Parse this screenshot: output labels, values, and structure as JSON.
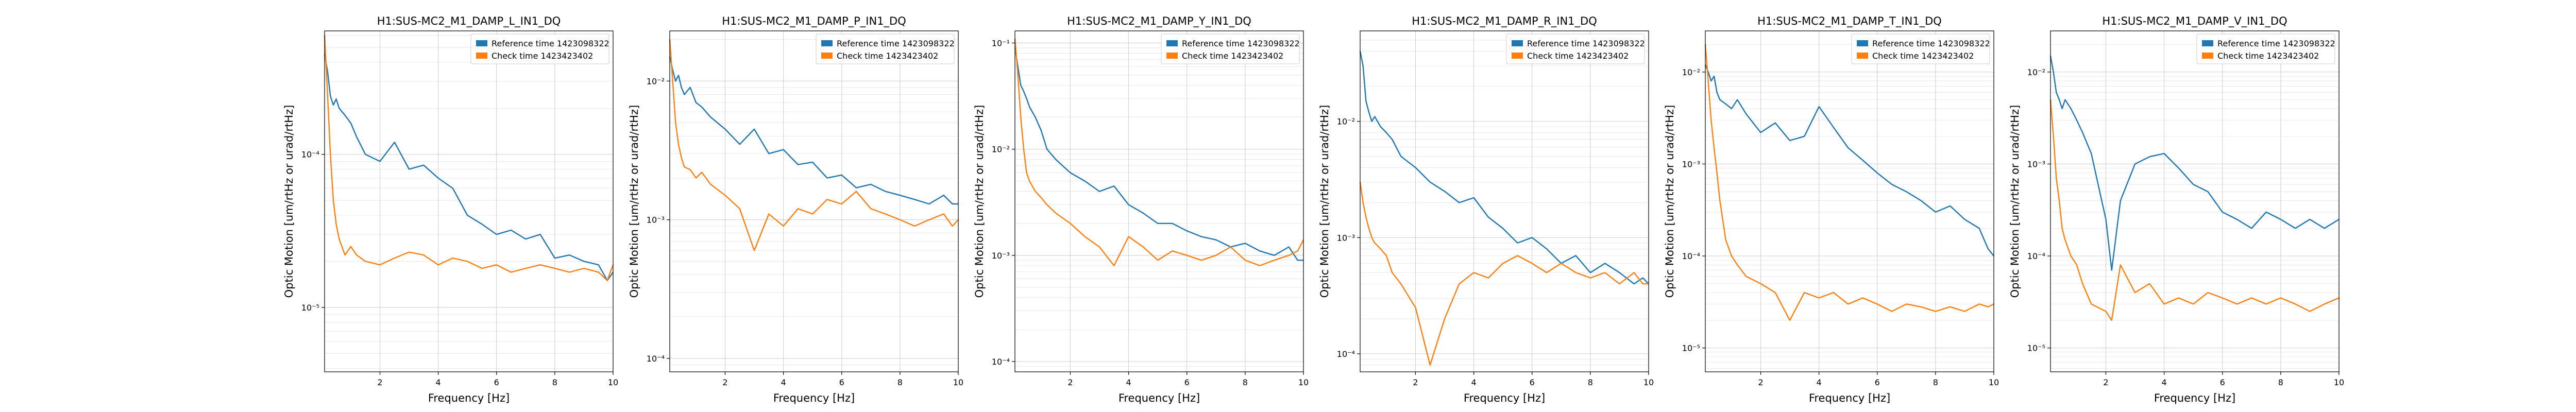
{
  "figure": {
    "background": "#ffffff"
  },
  "colors": {
    "reference": "#1f77b4",
    "check": "#ff7f0e"
  },
  "chart_data": [
    {
      "type": "line",
      "title": "H1:SUS-MC2_M1_DAMP_L_IN1_DQ",
      "xlabel": "Frequency [Hz]",
      "ylabel": "Optic Motion [um/rtHz or urad/rtHz]",
      "xscale": "linear",
      "yscale": "log",
      "xlim": [
        0.1,
        10
      ],
      "ylim": [
        3.8e-06,
        0.00064
      ],
      "xticks": [
        2,
        4,
        6,
        8,
        10
      ],
      "xtick_labels": [
        "2",
        "4",
        "6",
        "8",
        "10"
      ],
      "yticks": [
        1e-05,
        0.0001
      ],
      "ytick_labels": [
        "10⁻⁵",
        "10⁻⁴"
      ],
      "grid": true,
      "legend_position": "top-right",
      "series": [
        {
          "name": "Reference time 1423098322",
          "x": [
            0.1,
            0.2,
            0.3,
            0.4,
            0.5,
            0.6,
            0.8,
            1.0,
            1.2,
            1.5,
            2.0,
            2.5,
            3.0,
            3.5,
            4.0,
            4.5,
            5.0,
            5.5,
            6.0,
            6.5,
            7.0,
            7.5,
            8.0,
            8.5,
            9.0,
            9.5,
            9.8,
            10.0
          ],
          "y": [
            0.00045,
            0.00035,
            0.00024,
            0.00021,
            0.00023,
            0.0002,
            0.00018,
            0.00016,
            0.00013,
            0.0001,
            9e-05,
            0.00012,
            8e-05,
            8.5e-05,
            7e-05,
            6e-05,
            4e-05,
            3.5e-05,
            3e-05,
            3.2e-05,
            2.8e-05,
            3e-05,
            2.1e-05,
            2.2e-05,
            2e-05,
            1.9e-05,
            1.5e-05,
            1.7e-05
          ]
        },
        {
          "name": "Check time 1423423402",
          "x": [
            0.1,
            0.2,
            0.3,
            0.4,
            0.5,
            0.6,
            0.8,
            1.0,
            1.2,
            1.5,
            2.0,
            2.5,
            3.0,
            3.5,
            4.0,
            4.5,
            5.0,
            5.5,
            6.0,
            6.5,
            7.0,
            7.5,
            8.0,
            8.5,
            9.0,
            9.5,
            9.8,
            10.0
          ],
          "y": [
            0.0006,
            0.00025,
            0.0001,
            5e-05,
            3.5e-05,
            2.8e-05,
            2.2e-05,
            2.5e-05,
            2.2e-05,
            2e-05,
            1.9e-05,
            2.1e-05,
            2.3e-05,
            2.2e-05,
            1.9e-05,
            2.1e-05,
            2e-05,
            1.8e-05,
            1.9e-05,
            1.7e-05,
            1.8e-05,
            1.9e-05,
            1.8e-05,
            1.7e-05,
            1.8e-05,
            1.7e-05,
            1.5e-05,
            1.9e-05
          ]
        }
      ]
    },
    {
      "type": "line",
      "title": "H1:SUS-MC2_M1_DAMP_P_IN1_DQ",
      "xlabel": "Frequency [Hz]",
      "ylabel": "Optic Motion [um/rtHz or urad/rtHz]",
      "xscale": "linear",
      "yscale": "log",
      "xlim": [
        0.1,
        10
      ],
      "ylim": [
        8e-05,
        0.023
      ],
      "xticks": [
        2,
        4,
        6,
        8,
        10
      ],
      "xtick_labels": [
        "2",
        "4",
        "6",
        "8",
        "10"
      ],
      "yticks": [
        0.0001,
        0.001,
        0.01
      ],
      "ytick_labels": [
        "10⁻⁴",
        "10⁻³",
        "10⁻²"
      ],
      "grid": true,
      "legend_position": "top-right",
      "series": [
        {
          "name": "Reference time 1423098322",
          "x": [
            0.1,
            0.2,
            0.3,
            0.4,
            0.5,
            0.6,
            0.8,
            1.0,
            1.2,
            1.5,
            2.0,
            2.5,
            3.0,
            3.5,
            4.0,
            4.5,
            5.0,
            5.5,
            6.0,
            6.5,
            7.0,
            7.5,
            8.0,
            8.5,
            9.0,
            9.5,
            9.8,
            10.0
          ],
          "y": [
            0.015,
            0.012,
            0.01,
            0.011,
            0.009,
            0.008,
            0.009,
            0.007,
            0.0065,
            0.0055,
            0.0045,
            0.0035,
            0.0045,
            0.003,
            0.0032,
            0.0025,
            0.0026,
            0.002,
            0.0021,
            0.0017,
            0.0018,
            0.0016,
            0.0015,
            0.0014,
            0.0013,
            0.0015,
            0.0013,
            0.0013
          ]
        },
        {
          "name": "Check time 1423423402",
          "x": [
            0.1,
            0.2,
            0.3,
            0.4,
            0.5,
            0.6,
            0.8,
            1.0,
            1.2,
            1.5,
            2.0,
            2.5,
            3.0,
            3.5,
            4.0,
            4.5,
            5.0,
            5.5,
            6.0,
            6.5,
            7.0,
            7.5,
            8.0,
            8.5,
            9.0,
            9.5,
            9.8,
            10.0
          ],
          "y": [
            0.02,
            0.01,
            0.005,
            0.0035,
            0.0028,
            0.0024,
            0.0023,
            0.002,
            0.0022,
            0.0018,
            0.0015,
            0.0012,
            0.0006,
            0.0011,
            0.0009,
            0.0012,
            0.0011,
            0.0014,
            0.0013,
            0.0016,
            0.0012,
            0.0011,
            0.001,
            0.0009,
            0.001,
            0.0011,
            0.0009,
            0.001
          ]
        }
      ]
    },
    {
      "type": "line",
      "title": "H1:SUS-MC2_M1_DAMP_Y_IN1_DQ",
      "xlabel": "Frequency [Hz]",
      "ylabel": "Optic Motion [um/rtHz or urad/rtHz]",
      "xscale": "linear",
      "yscale": "log",
      "xlim": [
        0.1,
        10
      ],
      "ylim": [
        8e-05,
        0.13
      ],
      "xticks": [
        2,
        4,
        6,
        8,
        10
      ],
      "xtick_labels": [
        "2",
        "4",
        "6",
        "8",
        "10"
      ],
      "yticks": [
        0.0001,
        0.001,
        0.01,
        0.1
      ],
      "ytick_labels": [
        "10⁻⁴",
        "10⁻³",
        "10⁻²",
        "10⁻¹"
      ],
      "grid": true,
      "legend_position": "top-right",
      "series": [
        {
          "name": "Reference time 1423098322",
          "x": [
            0.1,
            0.2,
            0.3,
            0.4,
            0.5,
            0.6,
            0.8,
            1.0,
            1.2,
            1.5,
            2.0,
            2.5,
            3.0,
            3.5,
            4.0,
            4.5,
            5.0,
            5.5,
            6.0,
            6.5,
            7.0,
            7.5,
            8.0,
            8.5,
            9.0,
            9.5,
            9.8,
            10.0
          ],
          "y": [
            0.09,
            0.06,
            0.04,
            0.035,
            0.03,
            0.025,
            0.02,
            0.015,
            0.01,
            0.008,
            0.006,
            0.005,
            0.004,
            0.0045,
            0.003,
            0.0025,
            0.002,
            0.002,
            0.0017,
            0.0015,
            0.0014,
            0.0012,
            0.0013,
            0.0011,
            0.001,
            0.0012,
            0.0009,
            0.0009
          ]
        },
        {
          "name": "Check time 1423423402",
          "x": [
            0.1,
            0.2,
            0.3,
            0.4,
            0.5,
            0.6,
            0.8,
            1.0,
            1.2,
            1.5,
            2.0,
            2.5,
            3.0,
            3.5,
            4.0,
            4.5,
            5.0,
            5.5,
            6.0,
            6.5,
            7.0,
            7.5,
            8.0,
            8.5,
            9.0,
            9.5,
            9.8,
            10.0
          ],
          "y": [
            0.11,
            0.05,
            0.02,
            0.01,
            0.006,
            0.005,
            0.004,
            0.0035,
            0.003,
            0.0025,
            0.002,
            0.0015,
            0.0012,
            0.0008,
            0.0015,
            0.0012,
            0.0009,
            0.0011,
            0.001,
            0.0009,
            0.001,
            0.0012,
            0.0009,
            0.0008,
            0.0009,
            0.001,
            0.0011,
            0.0014
          ]
        }
      ]
    },
    {
      "type": "line",
      "title": "H1:SUS-MC2_M1_DAMP_R_IN1_DQ",
      "xlabel": "Frequency [Hz]",
      "ylabel": "Optic Motion [um/rtHz or urad/rtHz]",
      "xscale": "linear",
      "yscale": "log",
      "xlim": [
        0.1,
        10
      ],
      "ylim": [
        7e-05,
        0.06
      ],
      "xticks": [
        2,
        4,
        6,
        8,
        10
      ],
      "xtick_labels": [
        "2",
        "4",
        "6",
        "8",
        "10"
      ],
      "yticks": [
        0.0001,
        0.001,
        0.01
      ],
      "ytick_labels": [
        "10⁻⁴",
        "10⁻³",
        "10⁻²"
      ],
      "grid": true,
      "legend_position": "top-right",
      "series": [
        {
          "name": "Reference time 1423098322",
          "x": [
            0.1,
            0.2,
            0.3,
            0.4,
            0.5,
            0.6,
            0.8,
            1.0,
            1.2,
            1.5,
            2.0,
            2.5,
            3.0,
            3.5,
            4.0,
            4.5,
            5.0,
            5.5,
            6.0,
            6.5,
            7.0,
            7.5,
            8.0,
            8.5,
            9.0,
            9.5,
            9.8,
            10.0
          ],
          "y": [
            0.04,
            0.03,
            0.015,
            0.012,
            0.01,
            0.011,
            0.009,
            0.008,
            0.007,
            0.005,
            0.004,
            0.003,
            0.0025,
            0.002,
            0.0022,
            0.0015,
            0.0012,
            0.0009,
            0.001,
            0.0008,
            0.0006,
            0.0007,
            0.0005,
            0.0006,
            0.0005,
            0.0004,
            0.00045,
            0.0004
          ]
        },
        {
          "name": "Check time 1423423402",
          "x": [
            0.1,
            0.2,
            0.3,
            0.4,
            0.5,
            0.6,
            0.8,
            1.0,
            1.2,
            1.5,
            2.0,
            2.5,
            3.0,
            3.5,
            4.0,
            4.5,
            5.0,
            5.5,
            6.0,
            6.5,
            7.0,
            7.5,
            8.0,
            8.5,
            9.0,
            9.5,
            9.8,
            10.0
          ],
          "y": [
            0.003,
            0.002,
            0.0015,
            0.0012,
            0.001,
            0.0009,
            0.0008,
            0.0007,
            0.0005,
            0.0004,
            0.00025,
            8e-05,
            0.0002,
            0.0004,
            0.0005,
            0.00045,
            0.0006,
            0.0007,
            0.0006,
            0.0005,
            0.0006,
            0.0005,
            0.00045,
            0.0005,
            0.0004,
            0.0005,
            0.0004,
            0.0004
          ]
        }
      ]
    },
    {
      "type": "line",
      "title": "H1:SUS-MC2_M1_DAMP_T_IN1_DQ",
      "xlabel": "Frequency [Hz]",
      "ylabel": "Optic Motion [um/rtHz or urad/rtHz]",
      "xscale": "linear",
      "yscale": "log",
      "xlim": [
        0.1,
        10
      ],
      "ylim": [
        5.5e-06,
        0.028
      ],
      "xticks": [
        2,
        4,
        6,
        8,
        10
      ],
      "xtick_labels": [
        "2",
        "4",
        "6",
        "8",
        "10"
      ],
      "yticks": [
        1e-05,
        0.0001,
        0.001,
        0.01
      ],
      "ytick_labels": [
        "10⁻⁵",
        "10⁻⁴",
        "10⁻³",
        "10⁻²"
      ],
      "grid": true,
      "legend_position": "top-right",
      "series": [
        {
          "name": "Reference time 1423098322",
          "x": [
            0.1,
            0.2,
            0.3,
            0.4,
            0.5,
            0.6,
            0.8,
            1.0,
            1.2,
            1.5,
            2.0,
            2.5,
            3.0,
            3.5,
            4.0,
            4.5,
            5.0,
            5.5,
            6.0,
            6.5,
            7.0,
            7.5,
            8.0,
            8.5,
            9.0,
            9.5,
            9.8,
            10.0
          ],
          "y": [
            0.012,
            0.01,
            0.008,
            0.009,
            0.006,
            0.005,
            0.0045,
            0.004,
            0.005,
            0.0035,
            0.0022,
            0.0028,
            0.0018,
            0.002,
            0.0042,
            0.0025,
            0.0015,
            0.0011,
            0.0008,
            0.0006,
            0.0005,
            0.0004,
            0.0003,
            0.00035,
            0.00025,
            0.0002,
            0.00012,
            0.0001
          ]
        },
        {
          "name": "Check time 1423423402",
          "x": [
            0.1,
            0.2,
            0.3,
            0.4,
            0.5,
            0.6,
            0.8,
            1.0,
            1.2,
            1.5,
            2.0,
            2.5,
            3.0,
            3.5,
            4.0,
            4.5,
            5.0,
            5.5,
            6.0,
            6.5,
            7.0,
            7.5,
            8.0,
            8.5,
            9.0,
            9.5,
            9.8,
            10.0
          ],
          "y": [
            0.02,
            0.008,
            0.003,
            0.0015,
            0.0008,
            0.0004,
            0.00015,
            0.0001,
            8e-05,
            6e-05,
            5e-05,
            4e-05,
            2e-05,
            4e-05,
            3.5e-05,
            4e-05,
            3e-05,
            3.5e-05,
            3e-05,
            2.5e-05,
            3e-05,
            2.8e-05,
            2.5e-05,
            2.8e-05,
            2.5e-05,
            3e-05,
            2.8e-05,
            3e-05
          ]
        }
      ]
    },
    {
      "type": "line",
      "title": "H1:SUS-MC2_M1_DAMP_V_IN1_DQ",
      "xlabel": "Frequency [Hz]",
      "ylabel": "Optic Motion [um/rtHz or urad/rtHz]",
      "xscale": "linear",
      "yscale": "log",
      "xlim": [
        0.1,
        10
      ],
      "ylim": [
        5.5e-06,
        0.028
      ],
      "xticks": [
        2,
        4,
        6,
        8,
        10
      ],
      "xtick_labels": [
        "2",
        "4",
        "6",
        "8",
        "10"
      ],
      "yticks": [
        1e-05,
        0.0001,
        0.001,
        0.01
      ],
      "ytick_labels": [
        "10⁻⁵",
        "10⁻⁴",
        "10⁻³",
        "10⁻²"
      ],
      "grid": true,
      "legend_position": "top-right",
      "series": [
        {
          "name": "Reference time 1423098322",
          "x": [
            0.1,
            0.2,
            0.3,
            0.4,
            0.5,
            0.6,
            0.8,
            1.0,
            1.2,
            1.5,
            2.0,
            2.2,
            2.5,
            3.0,
            3.5,
            4.0,
            4.5,
            5.0,
            5.5,
            6.0,
            6.5,
            7.0,
            7.5,
            8.0,
            8.5,
            9.0,
            9.5,
            10.0
          ],
          "y": [
            0.015,
            0.01,
            0.006,
            0.005,
            0.004,
            0.005,
            0.004,
            0.003,
            0.0022,
            0.0013,
            0.00025,
            7e-05,
            0.0004,
            0.001,
            0.0012,
            0.0013,
            0.0009,
            0.0006,
            0.0005,
            0.0003,
            0.00025,
            0.0002,
            0.0003,
            0.00025,
            0.0002,
            0.00025,
            0.0002,
            0.00025
          ]
        },
        {
          "name": "Check time 1423423402",
          "x": [
            0.1,
            0.2,
            0.3,
            0.4,
            0.5,
            0.6,
            0.8,
            1.0,
            1.2,
            1.5,
            2.0,
            2.2,
            2.5,
            3.0,
            3.5,
            4.0,
            4.5,
            5.0,
            5.5,
            6.0,
            6.5,
            7.0,
            7.5,
            8.0,
            8.5,
            9.0,
            9.5,
            10.0
          ],
          "y": [
            0.005,
            0.002,
            0.0007,
            0.0004,
            0.0002,
            0.00015,
            0.0001,
            8e-05,
            5e-05,
            3e-05,
            2.5e-05,
            2e-05,
            8e-05,
            4e-05,
            5e-05,
            3e-05,
            3.5e-05,
            3e-05,
            4e-05,
            3.5e-05,
            3e-05,
            3.5e-05,
            3e-05,
            3.5e-05,
            3e-05,
            2.5e-05,
            3e-05,
            3.5e-05
          ]
        }
      ]
    }
  ]
}
